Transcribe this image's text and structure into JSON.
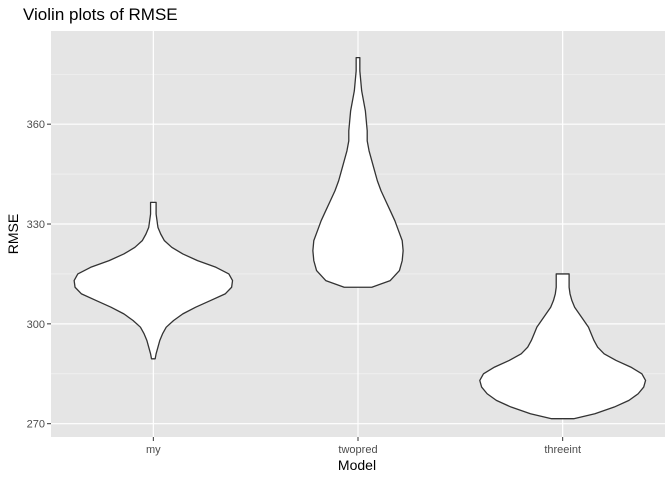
{
  "chart_data": {
    "type": "violin",
    "title": "Violin plots of RMSE",
    "xlabel": "Model",
    "ylabel": "RMSE",
    "categories": [
      "my",
      "twopred",
      "threeint"
    ],
    "ylim": [
      266,
      388
    ],
    "yticks": [
      270,
      300,
      330,
      360
    ],
    "ytick_labels": [
      "270",
      "300",
      "330",
      "360"
    ],
    "grid": true,
    "colors": {
      "panel": "#e5e5e5",
      "grid_major": "#ffffff",
      "violin_fill": "#ffffff",
      "violin_stroke": "#333333"
    },
    "violins": [
      {
        "category": "my",
        "min": 289.5,
        "max": 336.5,
        "half_width_fraction": [
          [
            289.5,
            0.02
          ],
          [
            291,
            0.03
          ],
          [
            293,
            0.05
          ],
          [
            295,
            0.07
          ],
          [
            297,
            0.1
          ],
          [
            299,
            0.14
          ],
          [
            301,
            0.22
          ],
          [
            303,
            0.32
          ],
          [
            305,
            0.46
          ],
          [
            307,
            0.62
          ],
          [
            309,
            0.78
          ],
          [
            311,
            0.85
          ],
          [
            313,
            0.86
          ],
          [
            315,
            0.82
          ],
          [
            317,
            0.68
          ],
          [
            319,
            0.48
          ],
          [
            321,
            0.32
          ],
          [
            323,
            0.2
          ],
          [
            325,
            0.12
          ],
          [
            327,
            0.08
          ],
          [
            329,
            0.05
          ],
          [
            331,
            0.04
          ],
          [
            333,
            0.03
          ],
          [
            335,
            0.03
          ],
          [
            336.5,
            0.03
          ]
        ]
      },
      {
        "category": "twopred",
        "min": 311,
        "max": 380,
        "half_width_fraction": [
          [
            311,
            0.15
          ],
          [
            313,
            0.35
          ],
          [
            316,
            0.45
          ],
          [
            319,
            0.48
          ],
          [
            322,
            0.49
          ],
          [
            325,
            0.48
          ],
          [
            328,
            0.44
          ],
          [
            331,
            0.4
          ],
          [
            334,
            0.35
          ],
          [
            337,
            0.3
          ],
          [
            340,
            0.25
          ],
          [
            343,
            0.21
          ],
          [
            346,
            0.18
          ],
          [
            349,
            0.15
          ],
          [
            352,
            0.12
          ],
          [
            355,
            0.1
          ],
          [
            358,
            0.1
          ],
          [
            361,
            0.09
          ],
          [
            364,
            0.08
          ],
          [
            367,
            0.06
          ],
          [
            370,
            0.04
          ],
          [
            373,
            0.03
          ],
          [
            376,
            0.02
          ],
          [
            378,
            0.02
          ],
          [
            380,
            0.02
          ]
        ]
      },
      {
        "category": "threeint",
        "min": 271.5,
        "max": 315,
        "half_width_fraction": [
          [
            271.5,
            0.12
          ],
          [
            273,
            0.35
          ],
          [
            275,
            0.56
          ],
          [
            277,
            0.72
          ],
          [
            279,
            0.82
          ],
          [
            281,
            0.88
          ],
          [
            283,
            0.9
          ],
          [
            285,
            0.86
          ],
          [
            287,
            0.74
          ],
          [
            289,
            0.58
          ],
          [
            291,
            0.45
          ],
          [
            293,
            0.38
          ],
          [
            295,
            0.34
          ],
          [
            297,
            0.31
          ],
          [
            299,
            0.28
          ],
          [
            301,
            0.23
          ],
          [
            303,
            0.18
          ],
          [
            305,
            0.13
          ],
          [
            307,
            0.1
          ],
          [
            309,
            0.08
          ],
          [
            311,
            0.07
          ],
          [
            313,
            0.07
          ],
          [
            315,
            0.07
          ]
        ]
      }
    ]
  }
}
